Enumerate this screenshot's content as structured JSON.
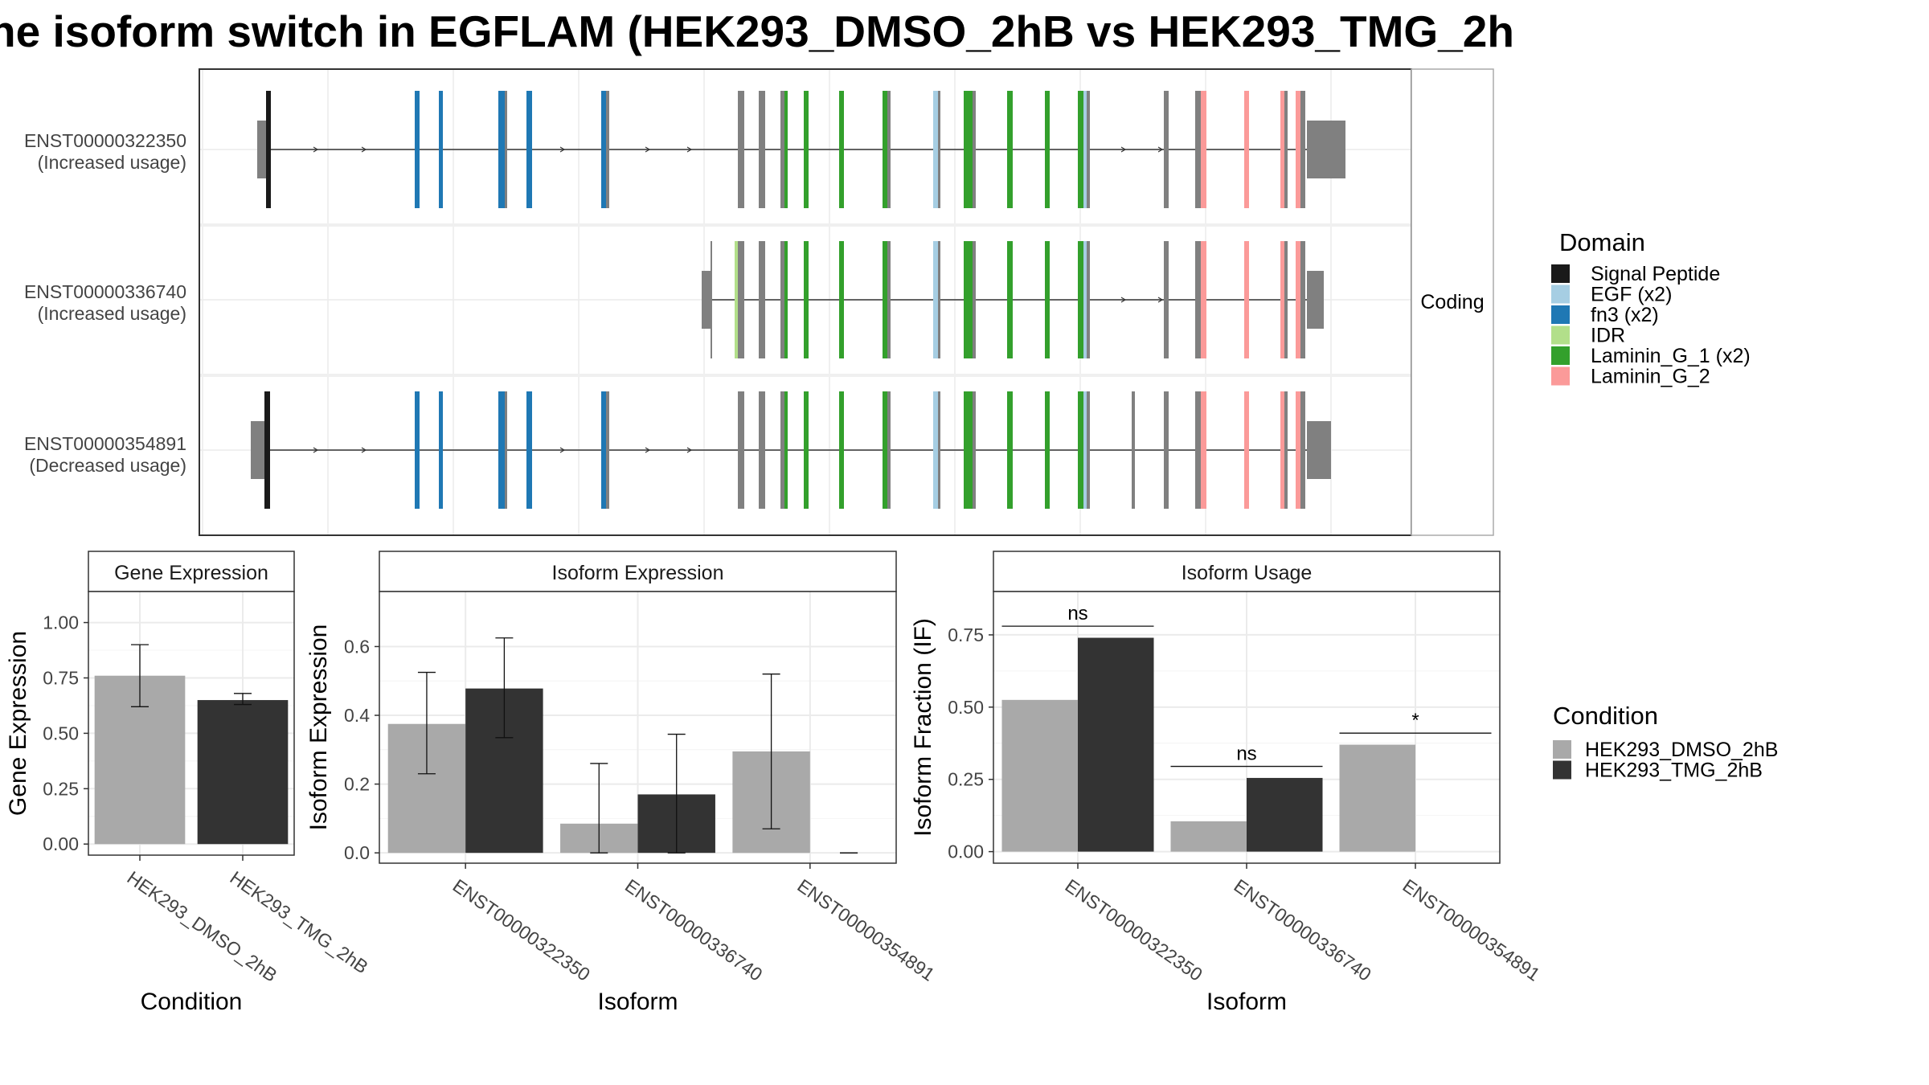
{
  "title": "ne isoform switch in EGFLAM (HEK293_DMSO_2hB vs HEK293_TMG_2h",
  "structure": {
    "facet_label": "Coding",
    "isoforms": [
      {
        "id": "ENST00000322350",
        "usage": "(Increased usage)"
      },
      {
        "id": "ENST00000336740",
        "usage": "(Increased usage)"
      },
      {
        "id": "ENST00000354891",
        "usage": "(Decreased usage)"
      }
    ]
  },
  "domain_legend": {
    "title": "Domain",
    "items": [
      {
        "label": "Signal Peptide",
        "color": "#1a1a1a"
      },
      {
        "label": "EGF (x2)",
        "color": "#a6cee3"
      },
      {
        "label": "fn3 (x2)",
        "color": "#1f78b4"
      },
      {
        "label": "IDR",
        "color": "#b2df8a"
      },
      {
        "label": "Laminin_G_1 (x2)",
        "color": "#33a02c"
      },
      {
        "label": "Laminin_G_2",
        "color": "#fb9a99"
      }
    ]
  },
  "condition_legend": {
    "title": "Condition",
    "items": [
      {
        "label": "HEK293_DMSO_2hB",
        "color": "#a9a9a9"
      },
      {
        "label": "HEK293_TMG_2hB",
        "color": "#333333"
      }
    ]
  },
  "chart_data": [
    {
      "type": "bar",
      "title": "Gene Expression",
      "xlabel": "Condition",
      "ylabel": "Gene Expression",
      "ylim": [
        -0.05,
        1.14
      ],
      "yticks": [
        "0.00",
        "0.25",
        "0.50",
        "0.75",
        "1.00"
      ],
      "categories": [
        "HEK293_DMSO_2hB",
        "HEK293_TMG_2hB"
      ],
      "values": [
        0.76,
        0.65
      ],
      "errors_low": [
        0.62,
        0.63
      ],
      "errors_high": [
        0.9,
        0.68
      ]
    },
    {
      "type": "bar",
      "title": "Isoform Expression",
      "xlabel": "Isoform",
      "ylabel": "Isoform Expression",
      "ylim": [
        -0.03,
        0.76
      ],
      "yticks": [
        "0.0",
        "0.2",
        "0.4",
        "0.6"
      ],
      "categories": [
        "ENST00000322350",
        "ENST00000336740",
        "ENST00000354891"
      ],
      "series": [
        {
          "name": "HEK293_DMSO_2hB",
          "values": [
            0.375,
            0.085,
            0.295
          ],
          "err_low": [
            0.23,
            0.0,
            0.07
          ],
          "err_high": [
            0.525,
            0.26,
            0.52
          ]
        },
        {
          "name": "HEK293_TMG_2hB",
          "values": [
            0.478,
            0.17,
            0.0
          ],
          "err_low": [
            0.335,
            0.0,
            0.0
          ],
          "err_high": [
            0.625,
            0.345,
            0.0
          ]
        }
      ]
    },
    {
      "type": "bar",
      "title": "Isoform Usage",
      "xlabel": "Isoform",
      "ylabel": "Isoform Fraction (IF)",
      "ylim": [
        -0.04,
        0.9
      ],
      "yticks": [
        "0.00",
        "0.25",
        "0.50",
        "0.75"
      ],
      "categories": [
        "ENST00000322350",
        "ENST00000336740",
        "ENST00000354891"
      ],
      "series": [
        {
          "name": "HEK293_DMSO_2hB",
          "values": [
            0.525,
            0.105,
            0.37
          ]
        },
        {
          "name": "HEK293_TMG_2hB",
          "values": [
            0.74,
            0.255,
            0.0
          ]
        }
      ],
      "significance": [
        {
          "label": "ns",
          "y": 0.78
        },
        {
          "label": "ns",
          "y": 0.295
        },
        {
          "label": "*",
          "y": 0.41
        }
      ]
    }
  ]
}
